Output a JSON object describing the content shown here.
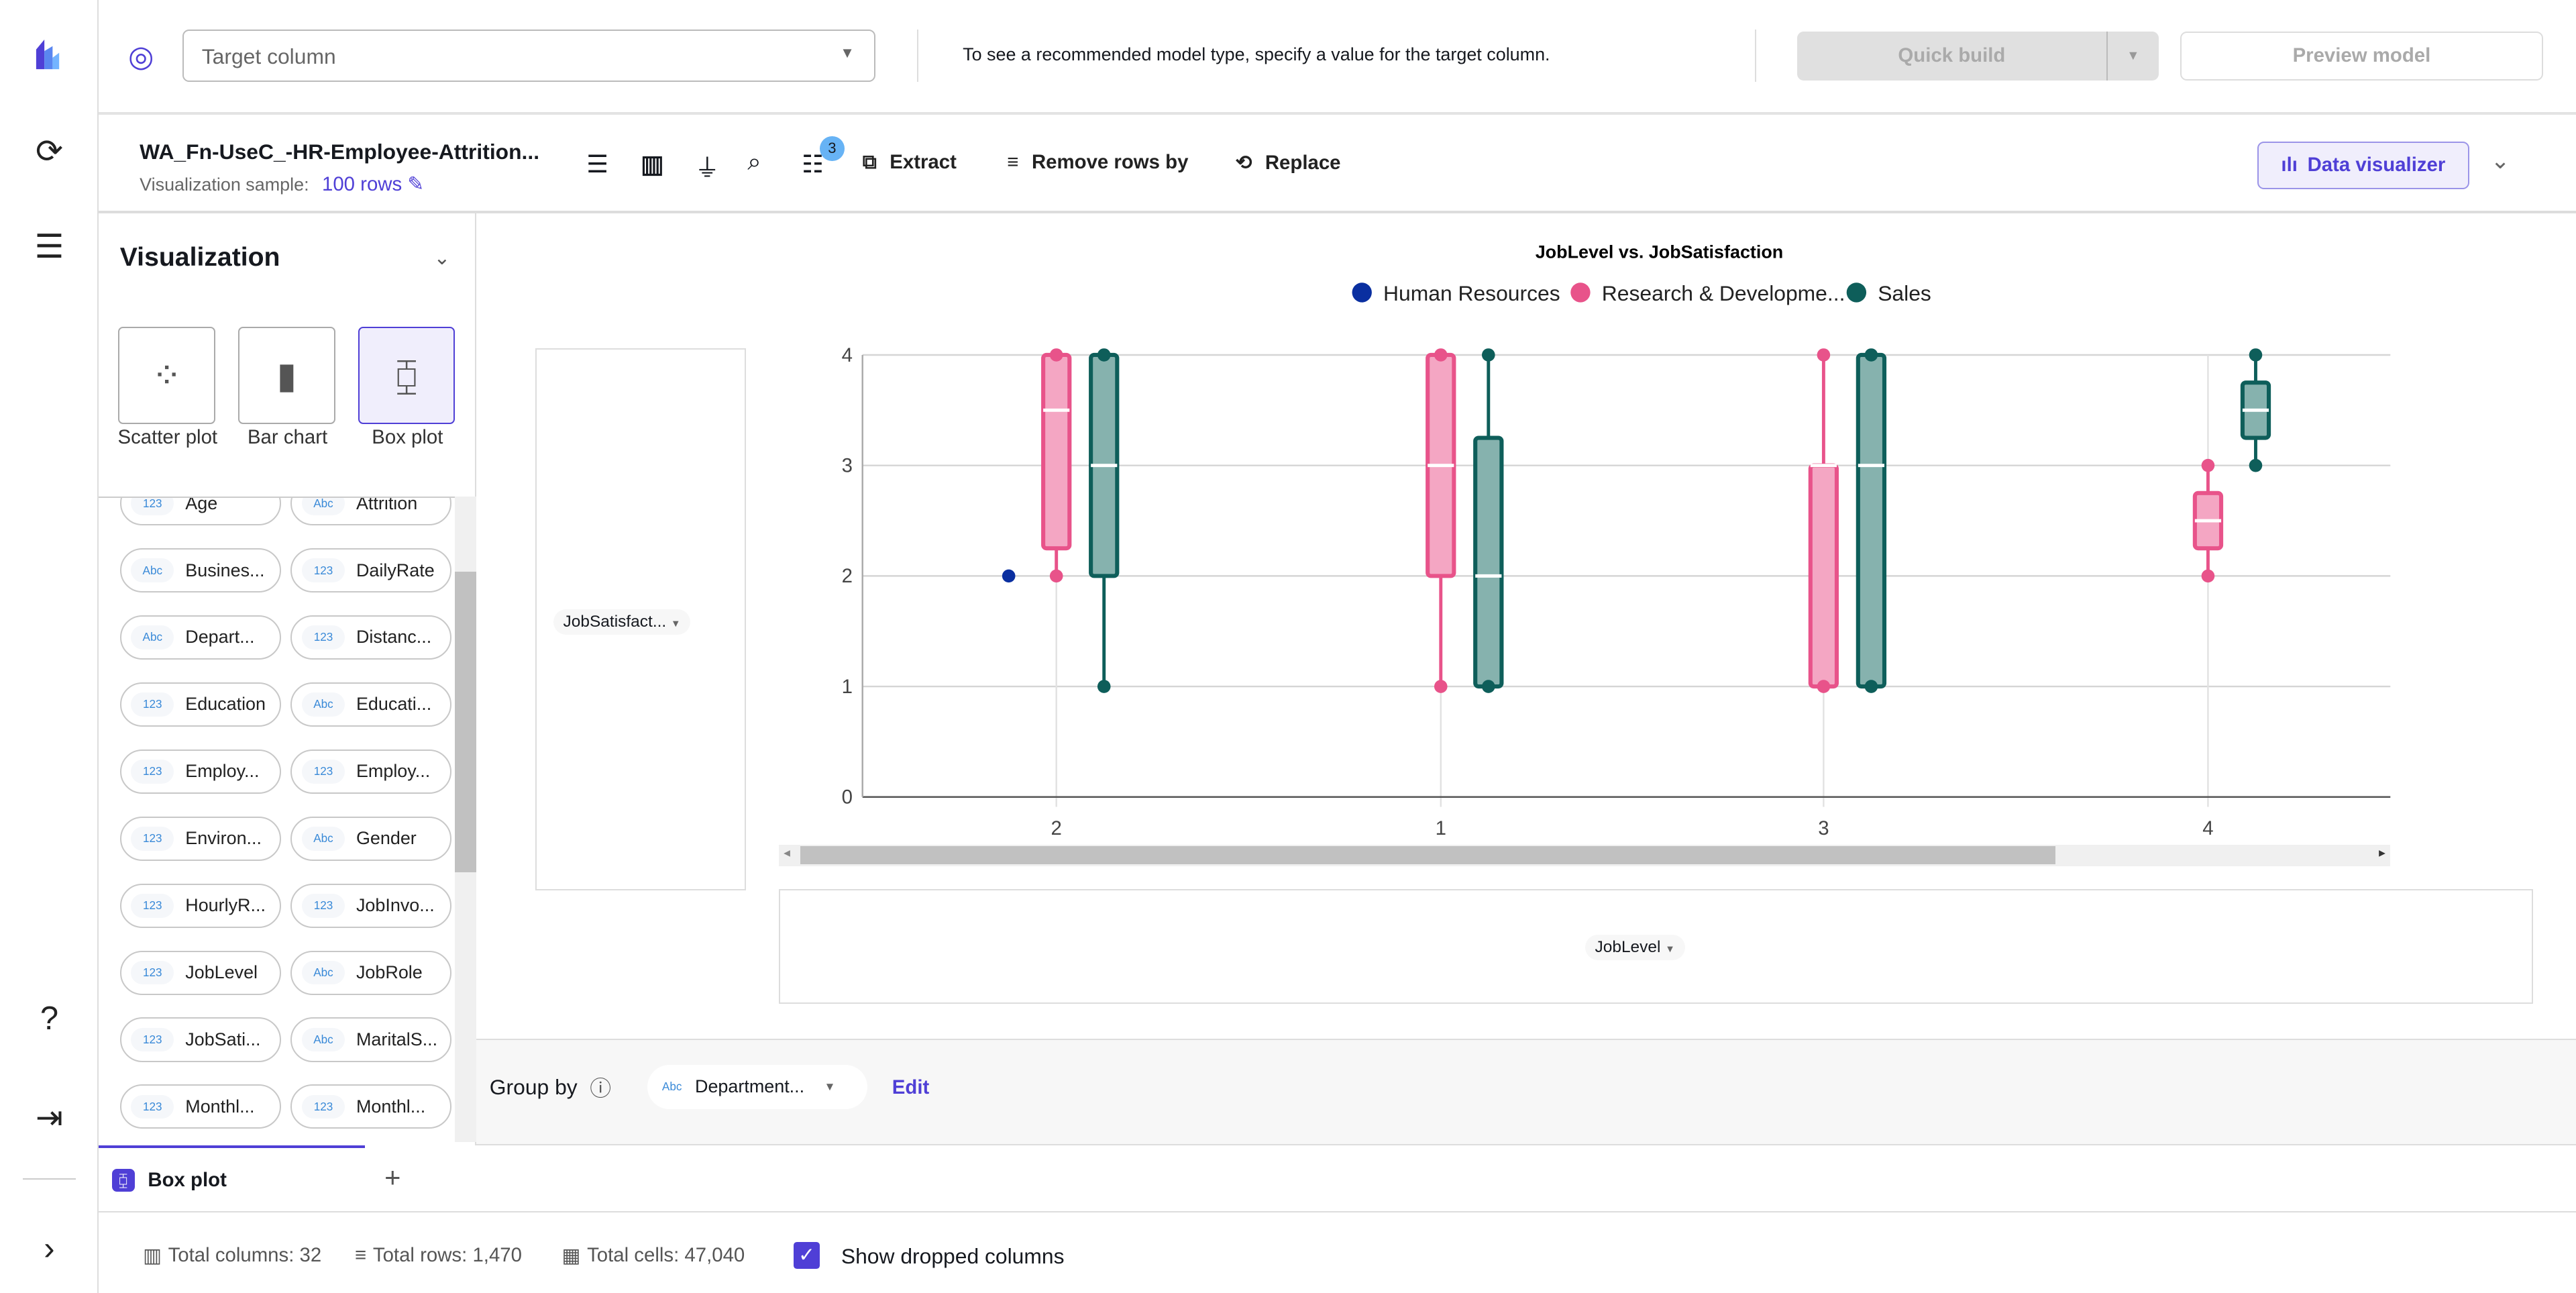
{
  "header": {
    "target_placeholder": "Target column",
    "hint": "To see a recommended model type, specify a value for the target column.",
    "quick_build": "Quick build",
    "preview_model": "Preview model"
  },
  "toolbar": {
    "dataset": "WA_Fn-UseC_-HR-Employee-Attrition...",
    "sample_label": "Visualization sample:",
    "sample_value": "100 rows",
    "steps_badge": "3",
    "extract": "Extract",
    "remove_rows": "Remove rows by",
    "replace": "Replace",
    "data_visualizer": "Data visualizer"
  },
  "panel": {
    "title": "Visualization",
    "types": [
      {
        "label": "Scatter plot"
      },
      {
        "label": "Bar chart"
      },
      {
        "label": "Box plot"
      }
    ],
    "columns": [
      {
        "type": "123",
        "name": "Age"
      },
      {
        "type": "Abc",
        "name": "Attrition"
      },
      {
        "type": "Abc",
        "name": "Busines..."
      },
      {
        "type": "123",
        "name": "DailyRate"
      },
      {
        "type": "Abc",
        "name": "Depart..."
      },
      {
        "type": "123",
        "name": "Distanc..."
      },
      {
        "type": "123",
        "name": "Education"
      },
      {
        "type": "Abc",
        "name": "Educati..."
      },
      {
        "type": "123",
        "name": "Employ..."
      },
      {
        "type": "123",
        "name": "Employ..."
      },
      {
        "type": "123",
        "name": "Environ..."
      },
      {
        "type": "Abc",
        "name": "Gender"
      },
      {
        "type": "123",
        "name": "HourlyR..."
      },
      {
        "type": "123",
        "name": "JobInvo..."
      },
      {
        "type": "123",
        "name": "JobLevel"
      },
      {
        "type": "Abc",
        "name": "JobRole"
      },
      {
        "type": "123",
        "name": "JobSati..."
      },
      {
        "type": "Abc",
        "name": "MaritalS..."
      },
      {
        "type": "123",
        "name": "Monthl..."
      },
      {
        "type": "123",
        "name": "Monthl..."
      }
    ]
  },
  "axes": {
    "y_field": "JobSatisfact...",
    "x_field": "JobLevel"
  },
  "group_by": {
    "label": "Group by",
    "type": "Abc",
    "value": "Department...",
    "edit": "Edit"
  },
  "tabs": [
    {
      "label": "Box plot"
    }
  ],
  "footer": {
    "columns": "Total columns: 32",
    "rows": "Total rows: 1,470",
    "cells": "Total cells: 47,040",
    "show_dropped": "Show dropped columns"
  },
  "chart_data": {
    "type": "box",
    "title": "JobLevel vs. JobSatisfaction",
    "categories": [
      "2",
      "1",
      "3",
      "4"
    ],
    "ylim": [
      0,
      4
    ],
    "yticks": [
      0,
      1,
      2,
      3,
      4
    ],
    "legend_position": "top",
    "series": [
      {
        "name": "Human Resources",
        "color": "#0a2fa0",
        "boxes": [
          {
            "min": 2,
            "q1": 2,
            "median": 2,
            "q3": 2,
            "max": 2
          },
          null,
          null,
          null
        ]
      },
      {
        "name": "Research & Developme...",
        "color": "#e8538a",
        "boxes": [
          {
            "min": 2,
            "q1": 2.25,
            "median": 3.5,
            "q3": 4,
            "max": 4
          },
          {
            "min": 1,
            "q1": 2,
            "median": 3,
            "q3": 4,
            "max": 4
          },
          {
            "min": 1,
            "q1": 1,
            "median": 3,
            "q3": 3,
            "max": 4
          },
          {
            "min": 2,
            "q1": 2.25,
            "median": 2.5,
            "q3": 2.75,
            "max": 3
          }
        ]
      },
      {
        "name": "Sales",
        "color": "#0e5e5a",
        "boxes": [
          {
            "min": 1,
            "q1": 2,
            "median": 3,
            "q3": 4,
            "max": 4
          },
          {
            "min": 1,
            "q1": 1,
            "median": 2,
            "q3": 3.25,
            "max": 4
          },
          {
            "min": 1,
            "q1": 1,
            "median": 3,
            "q3": 4,
            "max": 4
          },
          {
            "min": 3,
            "q1": 3.25,
            "median": 3.5,
            "q3": 3.75,
            "max": 4
          }
        ]
      }
    ]
  }
}
